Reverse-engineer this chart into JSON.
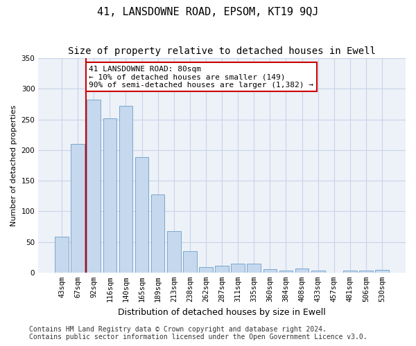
{
  "title": "41, LANSDOWNE ROAD, EPSOM, KT19 9QJ",
  "subtitle": "Size of property relative to detached houses in Ewell",
  "xlabel": "Distribution of detached houses by size in Ewell",
  "ylabel": "Number of detached properties",
  "footer_line1": "Contains HM Land Registry data © Crown copyright and database right 2024.",
  "footer_line2": "Contains public sector information licensed under the Open Government Licence v3.0.",
  "categories": [
    "43sqm",
    "67sqm",
    "92sqm",
    "116sqm",
    "140sqm",
    "165sqm",
    "189sqm",
    "213sqm",
    "238sqm",
    "262sqm",
    "287sqm",
    "311sqm",
    "335sqm",
    "360sqm",
    "384sqm",
    "408sqm",
    "433sqm",
    "457sqm",
    "481sqm",
    "506sqm",
    "530sqm"
  ],
  "values": [
    58,
    210,
    282,
    252,
    272,
    188,
    128,
    68,
    35,
    9,
    11,
    15,
    14,
    5,
    3,
    6,
    3,
    0,
    3,
    3,
    4
  ],
  "bar_color": "#c5d8ee",
  "bar_edge_color": "#7aa8cc",
  "vline_color": "#cc0000",
  "vline_x": 1.5,
  "annotation_text": "41 LANSDOWNE ROAD: 80sqm\n← 10% of detached houses are smaller (149)\n90% of semi-detached houses are larger (1,382) →",
  "annotation_box_edgecolor": "#cc0000",
  "ylim": [
    0,
    350
  ],
  "yticks": [
    0,
    50,
    100,
    150,
    200,
    250,
    300,
    350
  ],
  "grid_color": "#c8d4e8",
  "bg_color": "#edf1f8",
  "title_fontsize": 11,
  "subtitle_fontsize": 10,
  "ylabel_fontsize": 8,
  "xlabel_fontsize": 9,
  "tick_fontsize": 7.5,
  "annotation_fontsize": 8,
  "footer_fontsize": 7
}
